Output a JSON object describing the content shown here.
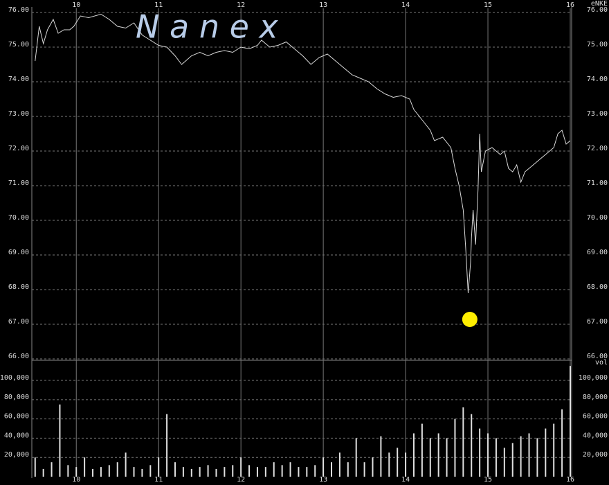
{
  "chart_data": [
    {
      "type": "line",
      "watermark": "N a n e x",
      "symbol": "eNKE",
      "color": "#d8d8d8",
      "x": [
        9.5,
        9.55,
        9.6,
        9.65,
        9.72,
        9.78,
        9.85,
        9.92,
        9.97,
        10.05,
        10.15,
        10.3,
        10.4,
        10.5,
        10.6,
        10.7,
        10.8,
        10.9,
        11.0,
        11.1,
        11.2,
        11.28,
        11.4,
        11.5,
        11.6,
        11.7,
        11.8,
        11.9,
        12.0,
        12.1,
        12.2,
        12.25,
        12.35,
        12.45,
        12.55,
        12.65,
        12.75,
        12.85,
        12.95,
        13.05,
        13.15,
        13.25,
        13.35,
        13.45,
        13.55,
        13.65,
        13.75,
        13.85,
        13.95,
        14.05,
        14.1,
        14.2,
        14.3,
        14.35,
        14.45,
        14.55,
        14.6,
        14.65,
        14.7,
        14.73,
        14.76,
        14.79,
        14.8,
        14.82,
        14.85,
        14.88,
        14.9,
        14.92,
        14.97,
        15.05,
        15.15,
        15.2,
        15.25,
        15.3,
        15.35,
        15.4,
        15.45,
        15.5,
        15.6,
        15.7,
        15.8,
        15.85,
        15.9,
        15.95,
        16.0
      ],
      "values": [
        74.6,
        75.6,
        75.1,
        75.5,
        75.8,
        75.4,
        75.5,
        75.5,
        75.6,
        75.9,
        75.85,
        75.95,
        75.8,
        75.6,
        75.55,
        75.7,
        75.35,
        75.2,
        75.05,
        75.0,
        74.75,
        74.5,
        74.75,
        74.85,
        74.75,
        74.85,
        74.9,
        74.85,
        75.0,
        74.95,
        75.05,
        75.2,
        75.0,
        75.05,
        75.15,
        74.95,
        74.75,
        74.5,
        74.7,
        74.8,
        74.6,
        74.4,
        74.2,
        74.1,
        74.0,
        73.8,
        73.65,
        73.55,
        73.6,
        73.5,
        73.2,
        72.9,
        72.6,
        72.3,
        72.4,
        72.1,
        71.5,
        71.0,
        70.3,
        69.2,
        67.9,
        68.8,
        69.5,
        70.3,
        69.3,
        70.9,
        72.5,
        71.4,
        72.0,
        72.1,
        71.9,
        72.0,
        71.5,
        71.4,
        71.6,
        71.1,
        71.4,
        71.5,
        71.7,
        71.9,
        72.1,
        72.5,
        72.6,
        72.2,
        72.3
      ],
      "marker": {
        "x": 14.78,
        "y": 67.14,
        "color": "#ffee00"
      },
      "xlim": [
        9.46,
        16
      ],
      "xticks": [
        10,
        11,
        12,
        13,
        14,
        15,
        16
      ],
      "ylim": [
        66,
        76
      ],
      "yticks": [
        {
          "value": 66,
          "label": "66.00"
        },
        {
          "value": 67,
          "label": "67.00"
        },
        {
          "value": 68,
          "label": "68.00"
        },
        {
          "value": 69,
          "label": "69.00"
        },
        {
          "value": 70,
          "label": "70.00"
        },
        {
          "value": 71,
          "label": "71.00"
        },
        {
          "value": 72,
          "label": "72.00"
        },
        {
          "value": 73,
          "label": "73.00"
        },
        {
          "value": 74,
          "label": "74.00"
        },
        {
          "value": 75,
          "label": "75.00"
        },
        {
          "value": 76,
          "label": "76.00"
        }
      ],
      "grid": true
    },
    {
      "type": "bar",
      "axis_label": "vol",
      "color": "#e0e0e0",
      "x": [
        9.5,
        9.6,
        9.7,
        9.8,
        9.9,
        10.0,
        10.1,
        10.2,
        10.3,
        10.4,
        10.5,
        10.6,
        10.7,
        10.8,
        10.9,
        11.0,
        11.1,
        11.2,
        11.3,
        11.4,
        11.5,
        11.6,
        11.7,
        11.8,
        11.9,
        12.0,
        12.1,
        12.2,
        12.3,
        12.4,
        12.5,
        12.6,
        12.7,
        12.8,
        12.9,
        13.0,
        13.1,
        13.2,
        13.3,
        13.4,
        13.5,
        13.6,
        13.7,
        13.8,
        13.9,
        14.0,
        14.1,
        14.2,
        14.3,
        14.4,
        14.5,
        14.6,
        14.7,
        14.8,
        14.9,
        15.0,
        15.1,
        15.2,
        15.3,
        15.4,
        15.5,
        15.6,
        15.7,
        15.8,
        15.9,
        16.0
      ],
      "values": [
        20000,
        8000,
        15000,
        75000,
        12000,
        10000,
        20000,
        8000,
        10000,
        12000,
        15000,
        25000,
        10000,
        8000,
        12000,
        20000,
        65000,
        15000,
        10000,
        8000,
        10000,
        12000,
        8000,
        10000,
        12000,
        20000,
        12000,
        10000,
        10000,
        15000,
        12000,
        15000,
        10000,
        10000,
        12000,
        20000,
        15000,
        25000,
        15000,
        40000,
        15000,
        20000,
        42000,
        25000,
        30000,
        25000,
        45000,
        55000,
        40000,
        45000,
        40000,
        60000,
        72000,
        65000,
        50000,
        45000,
        40000,
        30000,
        35000,
        42000,
        45000,
        40000,
        50000,
        55000,
        70000,
        115000
      ],
      "xlim": [
        9.46,
        16
      ],
      "xticks": [
        10,
        11,
        12,
        13,
        14,
        15,
        16
      ],
      "ylim": [
        0,
        118000
      ],
      "yticks": [
        {
          "value": 20000,
          "label": "20,000"
        },
        {
          "value": 40000,
          "label": "40,000"
        },
        {
          "value": 60000,
          "label": "60,000"
        },
        {
          "value": 80000,
          "label": "80,000"
        },
        {
          "value": 100000,
          "label": "100,000"
        }
      ],
      "grid": true
    }
  ]
}
